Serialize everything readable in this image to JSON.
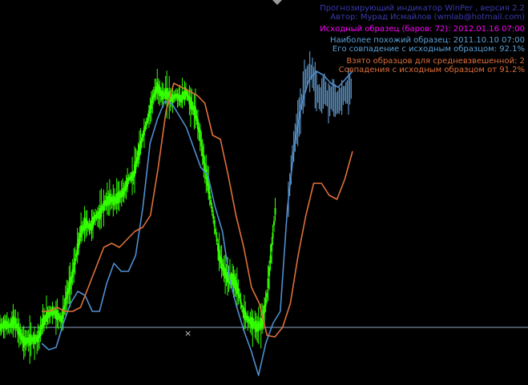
{
  "header": {
    "line1": "Прогнозирующий индикатор WinPer , версия 2.2",
    "line2": "Автор: Мурад Исмайлов (wmlab@hotmail.com)"
  },
  "sample": {
    "line1": "Исходный образец (баров: 72): 2012.01.16 07:00"
  },
  "similar": {
    "line1": "Наиболее похожий образец: 2011.10.10 07:00",
    "line2": "Его совпадение с исходным образцом: 92.1%"
  },
  "weighted": {
    "line1": "Взято образцов для средневзвешенной: 2",
    "line2": "Совпадения с исходным образцом от 91.2%"
  },
  "markers": {
    "cross": "×"
  },
  "colors": {
    "background": "#000000",
    "candles": "#33ff00",
    "forecast_bars": "#6aa8e0",
    "similar_line": "#4f8fd0",
    "weighted_line": "#e0703a",
    "baseline": "#8fa6c8"
  },
  "chart_data": {
    "type": "line",
    "grid": false,
    "baseline": 0,
    "candle_close_profile": [
      0,
      4,
      2,
      8,
      -5,
      -18,
      -16,
      -15,
      -14,
      6,
      16,
      20,
      15,
      10,
      40,
      60,
      90,
      120,
      130,
      125,
      138,
      142,
      155,
      160,
      158,
      163,
      170,
      185,
      190,
      215,
      240,
      260,
      285,
      300,
      290,
      292,
      285,
      290,
      285,
      295,
      280,
      268,
      240,
      200,
      165,
      130,
      90,
      70,
      60,
      60,
      45,
      20,
      10,
      5,
      0,
      6,
      40,
      100,
      160
    ],
    "forecast_bar_profile": [
      160,
      215,
      248,
      270,
      305,
      320,
      318,
      295,
      285,
      298,
      280,
      290,
      280,
      285,
      292,
      295,
      300
    ],
    "series": [
      {
        "values": [
          -20,
          -28,
          -25,
          5,
          30,
          45,
          40,
          20,
          20,
          55,
          80,
          70,
          70,
          90,
          150,
          230,
          260,
          282,
          280,
          265,
          250,
          225,
          200,
          190,
          150,
          120,
          60,
          25,
          -5,
          -30,
          -60,
          -20,
          5,
          20,
          150,
          230,
          280,
          310,
          320,
          315,
          305,
          300,
          310,
          320
        ]
      },
      {
        "values": [
          20,
          20,
          25,
          20,
          20,
          25,
          50,
          75,
          100,
          105,
          100,
          110,
          120,
          125,
          140,
          200,
          270,
          305,
          300,
          295,
          290,
          280,
          240,
          235,
          190,
          140,
          100,
          50,
          30,
          -10,
          -12,
          0,
          30,
          90,
          140,
          180,
          180,
          165,
          160,
          185,
          220
        ]
      }
    ]
  }
}
